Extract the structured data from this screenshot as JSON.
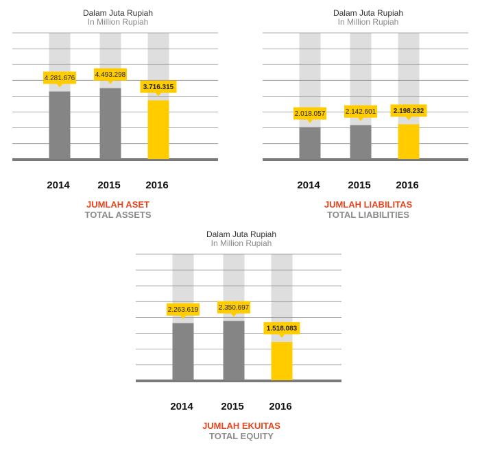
{
  "colors": {
    "bar_past": "#858585",
    "bar_current": "#ffcc00",
    "track": "#dedede",
    "grid": "#8f8f8f",
    "baseline": "#7a7a7a",
    "title_id": "#e8461e",
    "title_en": "#8a8a8a"
  },
  "chart_data": [
    {
      "type": "bar",
      "subtitle_id": "Dalam Juta Rupiah",
      "subtitle_en": "In Million Rupiah",
      "title_id": "JUMLAH ASET",
      "title_en": "TOTAL ASSETS",
      "categories": [
        "2014",
        "2015",
        "2016"
      ],
      "values": [
        4281676,
        4493298,
        3716315
      ],
      "labels": [
        "4.281.676",
        "4.493.298",
        "3.716.315"
      ],
      "highlight_index": 2,
      "ylim": [
        0,
        8000000
      ]
    },
    {
      "type": "bar",
      "subtitle_id": "Dalam Juta Rupiah",
      "subtitle_en": "In Million Rupiah",
      "title_id": "JUMLAH LIABILITAS",
      "title_en": "TOTAL LIABILITIES",
      "categories": [
        "2014",
        "2015",
        "2016"
      ],
      "values": [
        2018057,
        2142601,
        2198232
      ],
      "labels": [
        "2.018.057",
        "2.142.601",
        "2.198.232"
      ],
      "highlight_index": 2,
      "ylim": [
        0,
        8000000
      ]
    },
    {
      "type": "bar",
      "subtitle_id": "Dalam Juta Rupiah",
      "subtitle_en": "In Million Rupiah",
      "title_id": "JUMLAH EKUITAS",
      "title_en": "TOTAL EQUITY",
      "categories": [
        "2014",
        "2015",
        "2016"
      ],
      "values": [
        2263619,
        2350697,
        1518083
      ],
      "labels": [
        "2.263.619",
        "2.350.697",
        "1.518.083"
      ],
      "highlight_index": 2,
      "ylim": [
        0,
        5000000
      ]
    }
  ]
}
